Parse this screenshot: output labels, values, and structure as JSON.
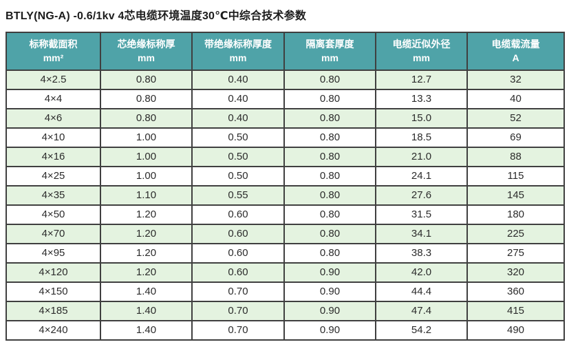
{
  "title": "BTLY(NG-A) -0.6/1kv  4芯电缆环境温度30℃中综合技术参数",
  "colors": {
    "header_bg": "#4FA3A8",
    "header_text": "#FFFFFF",
    "row_alt_bg": "#E4F3E0",
    "row_bg": "#FFFFFF",
    "border": "#3F3F3F",
    "body_text": "#2B2B2B",
    "title_text": "#1C1C1C"
  },
  "table": {
    "headers": [
      {
        "line1": "标称截面积",
        "line2": "mm²"
      },
      {
        "line1": "芯绝缘标称厚",
        "line2": "mm"
      },
      {
        "line1": "带绝缘标称厚度",
        "line2": "mm"
      },
      {
        "line1": "隔离套厚度",
        "line2": "mm"
      },
      {
        "line1": "电缆近似外径",
        "line2": "mm"
      },
      {
        "line1": "电缆载流量",
        "line2": "A"
      }
    ],
    "rows": [
      [
        "4×2.5",
        "0.80",
        "0.40",
        "0.80",
        "12.7",
        "32"
      ],
      [
        "4×4",
        "0.80",
        "0.40",
        "0.80",
        "13.3",
        "40"
      ],
      [
        "4×6",
        "0.80",
        "0.40",
        "0.80",
        "15.0",
        "52"
      ],
      [
        "4×10",
        "1.00",
        "0.50",
        "0.80",
        "18.5",
        "69"
      ],
      [
        "4×16",
        "1.00",
        "0.50",
        "0.80",
        "21.0",
        "88"
      ],
      [
        "4×25",
        "1.00",
        "0.50",
        "0.80",
        "24.1",
        "115"
      ],
      [
        "4×35",
        "1.10",
        "0.55",
        "0.80",
        "27.6",
        "145"
      ],
      [
        "4×50",
        "1.20",
        "0.60",
        "0.80",
        "31.5",
        "180"
      ],
      [
        "4×70",
        "1.20",
        "0.60",
        "0.80",
        "34.1",
        "225"
      ],
      [
        "4×95",
        "1.20",
        "0.60",
        "0.80",
        "38.3",
        "275"
      ],
      [
        "4×120",
        "1.20",
        "0.60",
        "0.90",
        "42.0",
        "320"
      ],
      [
        "4×150",
        "1.40",
        "0.70",
        "0.90",
        "44.4",
        "360"
      ],
      [
        "4×185",
        "1.40",
        "0.70",
        "0.90",
        "47.4",
        "415"
      ],
      [
        "4×240",
        "1.40",
        "0.70",
        "0.90",
        "54.2",
        "490"
      ]
    ]
  }
}
